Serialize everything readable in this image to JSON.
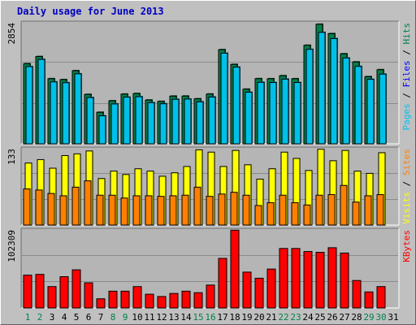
{
  "title": "Daily usage for June 2013",
  "colors": {
    "frame": "#c0c0c0",
    "plot_bg": "#b5b5b5",
    "grid": "#8c8c8c",
    "hits": "#00804a",
    "files": "#00c0e8",
    "pages": "#00e0f0",
    "visits": "#ffff00",
    "sites": "#ff8000",
    "kbytes": "#ff0000",
    "weekend_day": "#00804a",
    "weekday": "#000000"
  },
  "chart_data": [
    {
      "type": "bar",
      "panel": "hits-files-pages",
      "ylim": [
        0,
        2854
      ],
      "ymax_label": "2854",
      "legend": [
        {
          "name": "Hits",
          "color": "#00804a"
        },
        {
          "name": "Files",
          "color": "#0000ff"
        },
        {
          "name": "Pages",
          "color": "#00c0f0"
        }
      ],
      "legend_separator": " / ",
      "categories": [
        "1",
        "2",
        "3",
        "4",
        "5",
        "6",
        "7",
        "8",
        "9",
        "10",
        "11",
        "12",
        "13",
        "14",
        "15",
        "16",
        "17",
        "18",
        "19",
        "20",
        "21",
        "22",
        "23",
        "24",
        "25",
        "26",
        "27",
        "28",
        "29",
        "30",
        "31"
      ],
      "series": [
        {
          "name": "Hits",
          "values": [
            1887,
            2057,
            1535,
            1513,
            1724,
            1165,
            743,
            1014,
            1172,
            1185,
            1032,
            1000,
            1124,
            1125,
            1061,
            1173,
            2219,
            1872,
            1288,
            1536,
            1534,
            1605,
            1534,
            2322,
            2818,
            2597,
            2122,
            1930,
            1583,
            1747,
            0
          ]
        },
        {
          "name": "Files",
          "values": [
            1820,
            1990,
            1460,
            1441,
            1650,
            1090,
            660,
            940,
            1100,
            1111,
            970,
            944,
            1050,
            1055,
            990,
            1104,
            2136,
            1807,
            1216,
            1450,
            1446,
            1525,
            1445,
            2227,
            2627,
            2482,
            2023,
            1825,
            1520,
            1643,
            0
          ]
        }
      ]
    },
    {
      "type": "bar",
      "panel": "visits-sites",
      "ylim": [
        0,
        133
      ],
      "ymax_label": "133",
      "legend": [
        {
          "name": "Sites",
          "color": "#ff8000"
        },
        {
          "name": "Visits",
          "color": "#ffff00"
        }
      ],
      "legend_separator": " / ",
      "categories": [
        "1",
        "2",
        "3",
        "4",
        "5",
        "6",
        "7",
        "8",
        "9",
        "10",
        "11",
        "12",
        "13",
        "14",
        "15",
        "16",
        "17",
        "18",
        "19",
        "20",
        "21",
        "22",
        "23",
        "24",
        "25",
        "26",
        "27",
        "28",
        "29",
        "30",
        "31"
      ],
      "series": [
        {
          "name": "Visits",
          "values": [
            108,
            114,
            99,
            121,
            124,
            129,
            81,
            94,
            88,
            98,
            94,
            85,
            91,
            102,
            131,
            127,
            102,
            130,
            105,
            80,
            98,
            127,
            116,
            95,
            132,
            112,
            130,
            94,
            90,
            126,
            0
          ]
        },
        {
          "name": "Sites",
          "values": [
            63,
            61,
            55,
            51,
            66,
            77,
            52,
            52,
            47,
            51,
            51,
            50,
            51,
            52,
            66,
            50,
            54,
            57,
            52,
            34,
            39,
            52,
            39,
            35,
            52,
            53,
            69,
            40,
            51,
            53,
            0
          ]
        }
      ]
    },
    {
      "type": "bar",
      "panel": "kbytes",
      "ylim": [
        0,
        102309
      ],
      "ymax_label": "102309",
      "legend": [
        {
          "name": "KBytes",
          "color": "#ff0000"
        }
      ],
      "categories": [
        "1",
        "2",
        "3",
        "4",
        "5",
        "6",
        "7",
        "8",
        "9",
        "10",
        "11",
        "12",
        "13",
        "14",
        "15",
        "16",
        "17",
        "18",
        "19",
        "20",
        "21",
        "22",
        "23",
        "24",
        "25",
        "26",
        "27",
        "28",
        "29",
        "30",
        "31"
      ],
      "series": [
        {
          "name": "KBytes",
          "values": [
            43000,
            44000,
            28000,
            41000,
            50000,
            33000,
            12000,
            22000,
            22000,
            28000,
            18000,
            15000,
            19000,
            22000,
            20000,
            30000,
            65000,
            102000,
            47000,
            39000,
            51000,
            78000,
            78000,
            74000,
            73000,
            79000,
            72000,
            36000,
            21000,
            28000,
            0
          ]
        }
      ]
    }
  ],
  "x_axis_day_colors": [
    "#00804a",
    "#00804a",
    "#000000",
    "#000000",
    "#000000",
    "#000000",
    "#000000",
    "#00804a",
    "#00804a",
    "#000000",
    "#000000",
    "#000000",
    "#000000",
    "#000000",
    "#00804a",
    "#00804a",
    "#000000",
    "#000000",
    "#000000",
    "#000000",
    "#000000",
    "#00804a",
    "#00804a",
    "#000000",
    "#000000",
    "#000000",
    "#000000",
    "#000000",
    "#00804a",
    "#00804a",
    "#000000"
  ]
}
